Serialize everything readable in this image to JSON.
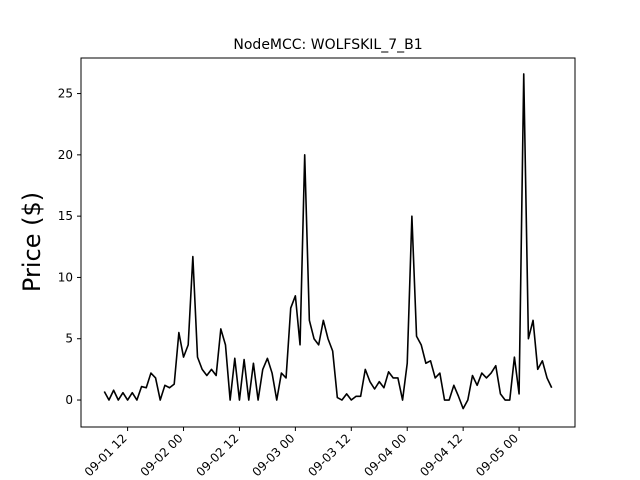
{
  "chart_data": {
    "type": "line",
    "title": "NodeMCC: WOLFSKIL_7_B1",
    "y_label": "Price ($)",
    "x": [
      "09-01 07",
      "09-01 08",
      "09-01 09",
      "09-01 10",
      "09-01 11",
      "09-01 12",
      "09-01 13",
      "09-01 14",
      "09-01 15",
      "09-01 16",
      "09-01 17",
      "09-01 18",
      "09-01 19",
      "09-01 20",
      "09-01 21",
      "09-01 22",
      "09-01 23",
      "09-02 00",
      "09-02 01",
      "09-02 02",
      "09-02 03",
      "09-02 04",
      "09-02 05",
      "09-02 06",
      "09-02 07",
      "09-02 08",
      "09-02 09",
      "09-02 10",
      "09-02 11",
      "09-02 12",
      "09-02 13",
      "09-02 14",
      "09-02 15",
      "09-02 16",
      "09-02 17",
      "09-02 18",
      "09-02 19",
      "09-02 20",
      "09-02 21",
      "09-02 22",
      "09-02 23",
      "09-03 00",
      "09-03 01",
      "09-03 02",
      "09-03 03",
      "09-03 04",
      "09-03 05",
      "09-03 06",
      "09-03 07",
      "09-03 08",
      "09-03 09",
      "09-03 10",
      "09-03 11",
      "09-03 12",
      "09-03 13",
      "09-03 14",
      "09-03 15",
      "09-03 16",
      "09-03 17",
      "09-03 18",
      "09-03 19",
      "09-03 20",
      "09-03 21",
      "09-03 22",
      "09-03 23",
      "09-04 00",
      "09-04 01",
      "09-04 02",
      "09-04 03",
      "09-04 04",
      "09-04 05",
      "09-04 06",
      "09-04 07",
      "09-04 08",
      "09-04 09",
      "09-04 10",
      "09-04 11",
      "09-04 12",
      "09-04 13",
      "09-04 14",
      "09-04 15",
      "09-04 16",
      "09-04 17",
      "09-04 18",
      "09-04 19",
      "09-04 20",
      "09-04 21",
      "09-04 22",
      "09-04 23",
      "09-05 00",
      "09-05 01",
      "09-05 02",
      "09-05 03",
      "09-05 04",
      "09-05 05",
      "09-05 06",
      "09-05 07"
    ],
    "series": [
      {
        "color": "#000000",
        "values": [
          0.7,
          0,
          0.8,
          0,
          0.6,
          0,
          0.6,
          0,
          1.1,
          1.0,
          2.2,
          1.8,
          0,
          1.2,
          1.0,
          1.3,
          5.5,
          3.5,
          4.5,
          11.7,
          3.5,
          2.5,
          2.0,
          2.5,
          2.0,
          5.8,
          4.5,
          0,
          3.4,
          0,
          3.3,
          0,
          3.0,
          0,
          2.5,
          3.4,
          2.2,
          0,
          2.2,
          1.8,
          7.5,
          8.5,
          4.5,
          20,
          6.5,
          5,
          4.5,
          6.5,
          5,
          4,
          0.2,
          0,
          0.5,
          0,
          0.3,
          0.3,
          2.5,
          1.5,
          0.9,
          1.5,
          1.0,
          2.3,
          1.8,
          1.8,
          0,
          3.0,
          15,
          5.2,
          4.5,
          3.0,
          3.2,
          1.8,
          2.2,
          0,
          0,
          1.2,
          0.3,
          -0.7,
          0,
          2,
          1.2,
          2.2,
          1.8,
          2.2,
          2.8,
          0.5,
          0,
          0,
          3.5,
          0.5,
          26.6,
          5,
          6.5,
          2.5,
          3.2,
          1.8,
          1.0
        ]
      }
    ],
    "xlim": [
      "09-01 02",
      "09-05 12"
    ],
    "xticks": [
      "09-01 12",
      "09-02 00",
      "09-02 12",
      "09-03 00",
      "09-03 12",
      "09-04 00",
      "09-04 12",
      "09-05 00"
    ],
    "ylim": [
      -2.2,
      27.9
    ],
    "yticks": [
      0,
      5,
      10,
      15,
      20,
      25
    ]
  }
}
